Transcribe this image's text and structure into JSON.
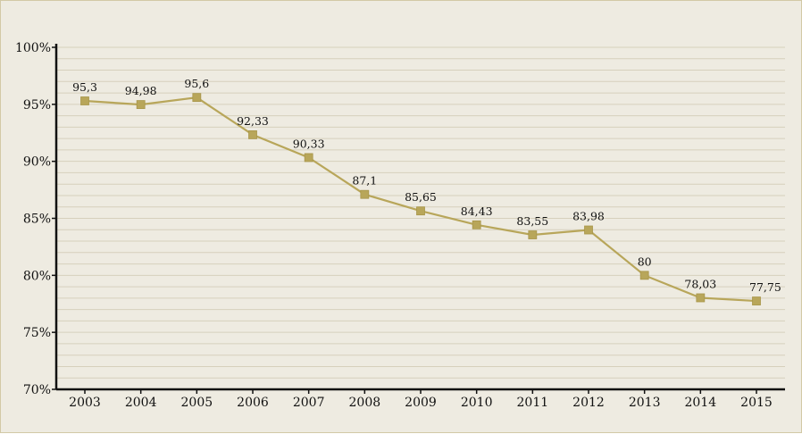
{
  "chart_data": {
    "type": "line",
    "title": "",
    "xlabel": "",
    "ylabel": "",
    "categories": [
      "2003",
      "2004",
      "2005",
      "2006",
      "2007",
      "2008",
      "2009",
      "2010",
      "2011",
      "2012",
      "2013",
      "2014",
      "2015"
    ],
    "series": [
      {
        "values": [
          95.3,
          94.98,
          95.6,
          92.33,
          90.33,
          87.1,
          85.65,
          84.43,
          83.55,
          83.98,
          80,
          78.03,
          77.75
        ],
        "labels": [
          "95,3",
          "94,98",
          "95,6",
          "92,33",
          "90,33",
          "87,1",
          "85,65",
          "84,43",
          "83,55",
          "83,98",
          "80",
          "78,03",
          "77,75"
        ],
        "color": "#b8a65a",
        "marker": "square"
      }
    ],
    "ylim": [
      70,
      100
    ],
    "yticks": [
      70,
      75,
      80,
      85,
      90,
      95,
      100
    ],
    "ytick_labels": [
      "70%",
      "75%",
      "80%",
      "85%",
      "90%",
      "95%",
      "100%"
    ],
    "grid": true,
    "legend": "none"
  },
  "colors": {
    "background": "#eeebe1",
    "frame_border": "#d2c9a6",
    "gridline": "#d6d0bc",
    "axis": "#111111",
    "series": "#b8a65a"
  }
}
